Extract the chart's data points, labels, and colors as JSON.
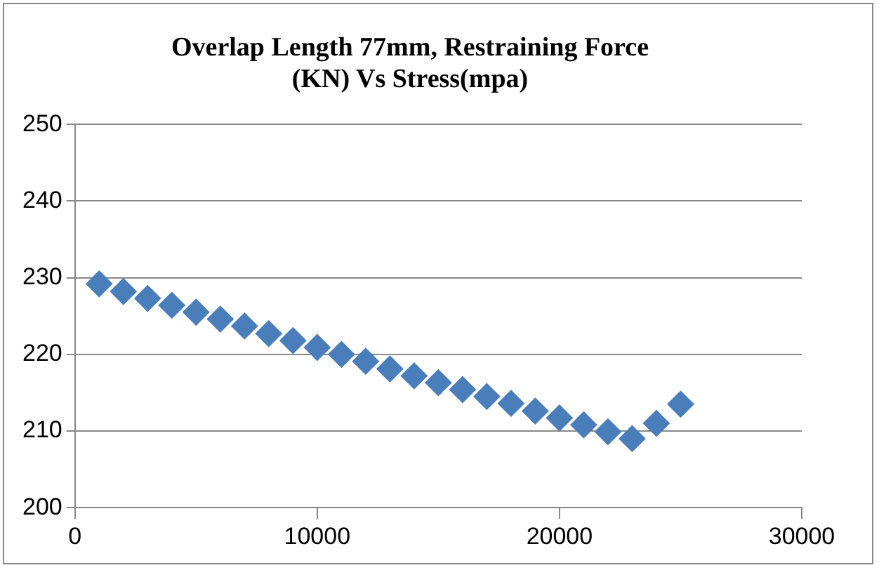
{
  "chart_data": {
    "type": "scatter",
    "title": "Overlap Length 77mm, Restraining Force (KN) Vs Stress(mpa)",
    "x": [
      1000,
      2000,
      3000,
      4000,
      5000,
      6000,
      7000,
      8000,
      9000,
      10000,
      11000,
      12000,
      13000,
      14000,
      15000,
      16000,
      17000,
      18000,
      19000,
      20000,
      21000,
      22000,
      23000,
      24000,
      25000
    ],
    "series": [
      {
        "color": "#4a7ebb",
        "values": [
          229.2,
          228.2,
          227.3,
          226.4,
          225.5,
          224.6,
          223.7,
          222.7,
          221.8,
          220.9,
          220.0,
          219.1,
          218.1,
          217.2,
          216.3,
          215.4,
          214.5,
          213.6,
          212.6,
          211.7,
          210.8,
          209.9,
          209.0,
          211.0,
          213.5
        ]
      }
    ],
    "xlim": [
      0,
      30000
    ],
    "xticks": [
      0,
      10000,
      20000,
      30000
    ],
    "ylim": [
      200,
      250
    ],
    "yticks": [
      200,
      210,
      220,
      230,
      240,
      250
    ],
    "grid": "y",
    "legend": false,
    "marker": "diamond"
  }
}
